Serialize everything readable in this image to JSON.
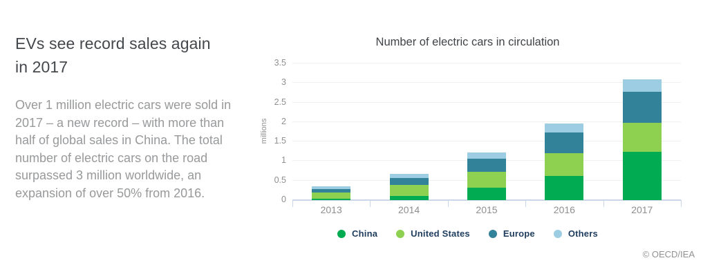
{
  "article": {
    "title": "EVs see record sales again in 2017",
    "body": "Over 1 million electric cars were sold in 2017 – a new record – with more than half of global sales in China. The total number of electric cars on the road surpassed 3 million worldwide, an expansion of over 50% from 2016."
  },
  "chart_data": {
    "type": "bar",
    "stacked": true,
    "title": "Number of electric cars in circulation",
    "xlabel": "",
    "ylabel": "millions",
    "categories": [
      "2013",
      "2014",
      "2015",
      "2016",
      "2017"
    ],
    "series": [
      {
        "name": "China",
        "color": "#00ab51",
        "values": [
          0.03,
          0.1,
          0.32,
          0.62,
          1.23
        ]
      },
      {
        "name": "United States",
        "color": "#8ed04f",
        "values": [
          0.17,
          0.29,
          0.4,
          0.58,
          0.75
        ]
      },
      {
        "name": "Europe",
        "color": "#32839a",
        "values": [
          0.08,
          0.18,
          0.34,
          0.54,
          0.8
        ]
      },
      {
        "name": "Others",
        "color": "#9ccde2",
        "values": [
          0.08,
          0.1,
          0.16,
          0.23,
          0.31
        ]
      }
    ],
    "totals": [
      0.36,
      0.67,
      1.22,
      1.97,
      3.09
    ],
    "ylim": [
      0,
      3.5
    ],
    "yticks": [
      0,
      0.5,
      1,
      1.5,
      2,
      2.5,
      3,
      3.5
    ],
    "grid": true,
    "legend_position": "bottom"
  },
  "footer": {
    "copyright": "© OECD/IEA"
  },
  "colors": {
    "headline": "#44484c",
    "body_text": "#97999b",
    "axis_text": "#8d8f91",
    "axis_line": "#ccd6e9",
    "gridline": "#f0f0f0",
    "legend_text": "#1e3c5e"
  }
}
